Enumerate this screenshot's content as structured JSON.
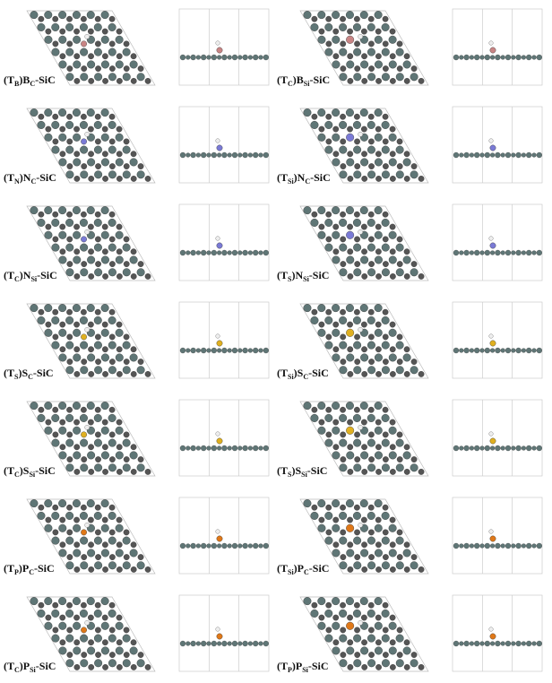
{
  "panels": [
    {
      "label": [
        "(T",
        "B",
        ")B",
        "C",
        "-SiC"
      ],
      "color": "#c98585"
    },
    {
      "label": [
        "(T",
        "C",
        ")B",
        "Si",
        "-SiC"
      ],
      "color": "#c98585"
    },
    {
      "label": [
        "(T",
        "N",
        ")N",
        "C",
        "-SiC"
      ],
      "color": "#7a7ad6"
    },
    {
      "label": [
        "(T",
        "Si",
        ")N",
        "C",
        "-SiC"
      ],
      "color": "#7a7ad6"
    },
    {
      "label": [
        "(T",
        "C",
        ")N",
        "Si",
        "-SiC"
      ],
      "color": "#7a7ad6"
    },
    {
      "label": [
        "(T",
        "S",
        ")N",
        "Si",
        "-SiC"
      ],
      "color": "#7a7ad6"
    },
    {
      "label": [
        "(T",
        "S",
        ")S",
        "C",
        "-SiC"
      ],
      "color": "#e0b020"
    },
    {
      "label": [
        "(T",
        "Si",
        ")S",
        "C",
        "-SiC"
      ],
      "color": "#e0b020"
    },
    {
      "label": [
        "(T",
        "C",
        ")S",
        "Si",
        "-SiC"
      ],
      "color": "#e0b020"
    },
    {
      "label": [
        "(T",
        "S",
        ")S",
        "Si",
        "-SiC"
      ],
      "color": "#e0b020"
    },
    {
      "label": [
        "(T",
        "P",
        ")P",
        "C",
        "-SiC"
      ],
      "color": "#e07818"
    },
    {
      "label": [
        "(T",
        "Si",
        ")P",
        "C",
        "-SiC"
      ],
      "color": "#e07818"
    },
    {
      "label": [
        "(T",
        "C",
        ")P",
        "Si",
        "-SiC"
      ],
      "color": "#e07818"
    },
    {
      "label": [
        "(T",
        "P",
        ")P",
        "Si",
        "-SiC"
      ],
      "color": "#e07818"
    }
  ]
}
